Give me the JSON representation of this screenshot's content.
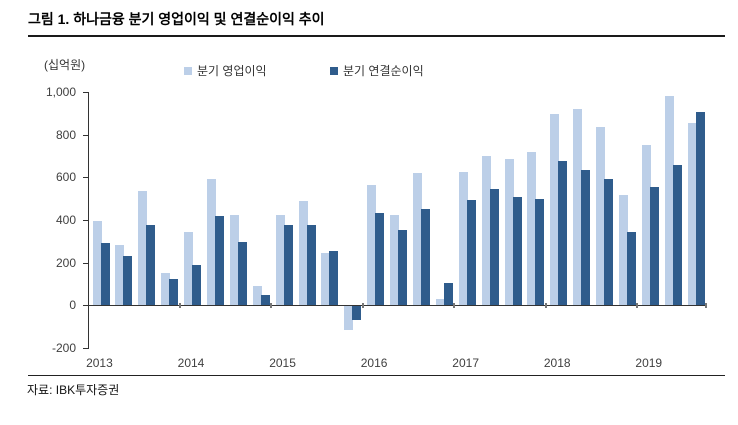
{
  "figure": {
    "title": "그림 1. 하나금융 분기 영업이익 및 연결순이익 추이",
    "source": "자료: IBK투자증권"
  },
  "chart_data": {
    "type": "bar",
    "title": "하나금융 분기 영업이익 및 연결순이익 추이",
    "unit_label": "(십억원)",
    "categories": [
      "2013Q1",
      "2013Q2",
      "2013Q3",
      "2013Q4",
      "2014Q1",
      "2014Q2",
      "2014Q3",
      "2014Q4",
      "2015Q1",
      "2015Q2",
      "2015Q3",
      "2015Q4",
      "2016Q1",
      "2016Q2",
      "2016Q3",
      "2016Q4",
      "2017Q1",
      "2017Q2",
      "2017Q3",
      "2017Q4",
      "2018Q1",
      "2018Q2",
      "2018Q3",
      "2018Q4",
      "2019Q1",
      "2019Q2",
      "2019Q3"
    ],
    "x_year_labels": [
      "2013",
      "2014",
      "2015",
      "2016",
      "2017",
      "2018",
      "2019"
    ],
    "quarters_per_year": [
      4,
      4,
      4,
      4,
      4,
      4,
      3
    ],
    "series": [
      {
        "name": "분기 영업이익",
        "color": "#BCCFE8",
        "values": [
          395,
          285,
          535,
          150,
          345,
          590,
          425,
          90,
          425,
          490,
          245,
          -110,
          565,
          425,
          620,
          30,
          625,
          700,
          685,
          720,
          895,
          920,
          835,
          515,
          750,
          980,
          855
        ]
      },
      {
        "name": "분기 연결순이익",
        "color": "#2F5C8C",
        "values": [
          290,
          230,
          375,
          125,
          190,
          420,
          295,
          50,
          375,
          375,
          255,
          -65,
          435,
          355,
          450,
          105,
          495,
          545,
          510,
          500,
          675,
          635,
          590,
          345,
          555,
          660,
          905
        ]
      }
    ],
    "ylim": [
      -200,
      1000
    ],
    "yticks": [
      1000,
      800,
      600,
      400,
      200,
      0,
      -200
    ],
    "grid": false,
    "legend_position": "top"
  }
}
